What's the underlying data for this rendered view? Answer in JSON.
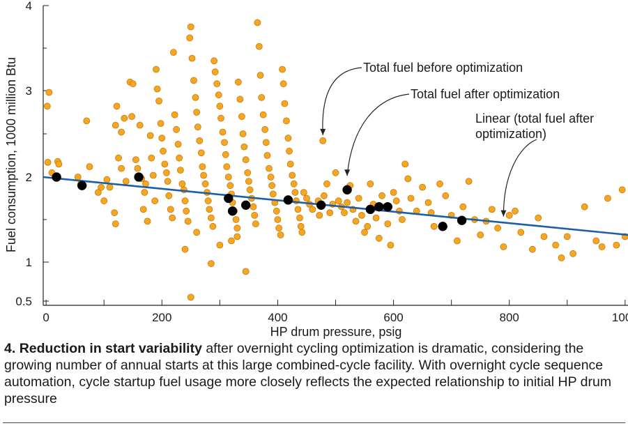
{
  "chart_data": {
    "type": "scatter",
    "title": "",
    "xlabel": "HP drum pressure, psig",
    "ylabel": "Fuel consumption, 1000 million Btu",
    "xlim": [
      -5,
      1005
    ],
    "ylim": [
      0.5,
      4
    ],
    "x_ticks": [
      0,
      200,
      400,
      600,
      800,
      1000
    ],
    "x_tick_labels": [
      "0",
      "200",
      "400",
      "600",
      "800",
      "1000"
    ],
    "x_minor_ticks": [
      100,
      300,
      500,
      700,
      900
    ],
    "y_ticks": [
      0.5,
      1,
      2,
      3,
      4
    ],
    "y_tick_labels": [
      "0.5",
      "1",
      "2",
      "3",
      "4"
    ],
    "y_minor_ticks": [
      1.5,
      2.5,
      3.5
    ],
    "colors": {
      "before": "#f5a623",
      "before_edge": "#c77a0a",
      "after": "#000000",
      "line": "#1a5fa8"
    },
    "series": [
      {
        "name": "Total fuel before optimization",
        "marker": "orange-circle",
        "points": [
          [
            2,
            2.82
          ],
          [
            5,
            2.98
          ],
          [
            3,
            2.17
          ],
          [
            10,
            2.05
          ],
          [
            20,
            2.18
          ],
          [
            22,
            2.15
          ],
          [
            70,
            2.65
          ],
          [
            55,
            2.0
          ],
          [
            60,
            1.92
          ],
          [
            75,
            2.12
          ],
          [
            90,
            1.82
          ],
          [
            95,
            1.88
          ],
          [
            105,
            1.97
          ],
          [
            110,
            1.88
          ],
          [
            100,
            1.72
          ],
          [
            120,
            2.6
          ],
          [
            122,
            2.82
          ],
          [
            125,
            2.22
          ],
          [
            118,
            1.58
          ],
          [
            120,
            1.45
          ],
          [
            130,
            2.52
          ],
          [
            130,
            2.1
          ],
          [
            135,
            2.68
          ],
          [
            138,
            1.95
          ],
          [
            145,
            3.1
          ],
          [
            148,
            2.7
          ],
          [
            150,
            3.08
          ],
          [
            155,
            2.2
          ],
          [
            158,
            2.1
          ],
          [
            160,
            2.0
          ],
          [
            162,
            2.6
          ],
          [
            165,
            1.98
          ],
          [
            170,
            1.82
          ],
          [
            168,
            1.62
          ],
          [
            172,
            1.92
          ],
          [
            175,
            1.48
          ],
          [
            180,
            2.48
          ],
          [
            182,
            2.22
          ],
          [
            185,
            2.02
          ],
          [
            188,
            1.72
          ],
          [
            190,
            3.25
          ],
          [
            192,
            3.02
          ],
          [
            195,
            2.88
          ],
          [
            198,
            2.62
          ],
          [
            200,
            2.45
          ],
          [
            202,
            2.3
          ],
          [
            205,
            2.15
          ],
          [
            208,
            2.05
          ],
          [
            210,
            1.95
          ],
          [
            212,
            1.78
          ],
          [
            215,
            1.62
          ],
          [
            218,
            1.52
          ],
          [
            220,
            3.45
          ],
          [
            222,
            2.72
          ],
          [
            225,
            2.55
          ],
          [
            228,
            2.38
          ],
          [
            230,
            2.22
          ],
          [
            232,
            2.08
          ],
          [
            235,
            1.92
          ],
          [
            238,
            1.85
          ],
          [
            240,
            1.72
          ],
          [
            242,
            1.6
          ],
          [
            245,
            1.48
          ],
          [
            248,
            3.62
          ],
          [
            250,
            3.75
          ],
          [
            252,
            3.38
          ],
          [
            255,
            3.12
          ],
          [
            258,
            2.92
          ],
          [
            260,
            2.75
          ],
          [
            262,
            2.58
          ],
          [
            265,
            2.42
          ],
          [
            268,
            2.28
          ],
          [
            270,
            2.12
          ],
          [
            272,
            2.02
          ],
          [
            275,
            1.92
          ],
          [
            278,
            1.82
          ],
          [
            280,
            1.72
          ],
          [
            282,
            1.62
          ],
          [
            285,
            1.52
          ],
          [
            288,
            1.42
          ],
          [
            290,
            3.35
          ],
          [
            292,
            3.22
          ],
          [
            295,
            3.08
          ],
          [
            298,
            2.95
          ],
          [
            300,
            2.82
          ],
          [
            302,
            2.68
          ],
          [
            305,
            2.52
          ],
          [
            308,
            2.4
          ],
          [
            310,
            2.26
          ],
          [
            312,
            2.12
          ],
          [
            315,
            2.0
          ],
          [
            318,
            1.9
          ],
          [
            320,
            1.8
          ],
          [
            322,
            1.7
          ],
          [
            325,
            1.6
          ],
          [
            328,
            1.5
          ],
          [
            330,
            1.4
          ],
          [
            332,
            3.1
          ],
          [
            335,
            2.9
          ],
          [
            338,
            2.7
          ],
          [
            340,
            2.5
          ],
          [
            342,
            2.35
          ],
          [
            345,
            2.2
          ],
          [
            348,
            2.05
          ],
          [
            350,
            1.95
          ],
          [
            352,
            1.85
          ],
          [
            355,
            1.75
          ],
          [
            358,
            1.65
          ],
          [
            360,
            1.55
          ],
          [
            362,
            1.45
          ],
          [
            365,
            3.8
          ],
          [
            368,
            3.52
          ],
          [
            370,
            3.18
          ],
          [
            372,
            2.92
          ],
          [
            375,
            2.72
          ],
          [
            378,
            2.55
          ],
          [
            380,
            2.4
          ],
          [
            382,
            2.25
          ],
          [
            385,
            2.1
          ],
          [
            388,
            2.0
          ],
          [
            390,
            1.9
          ],
          [
            392,
            1.8
          ],
          [
            395,
            1.7
          ],
          [
            398,
            1.6
          ],
          [
            400,
            1.5
          ],
          [
            402,
            1.4
          ],
          [
            405,
            1.32
          ],
          [
            408,
            3.25
          ],
          [
            410,
            3.08
          ],
          [
            412,
            2.85
          ],
          [
            415,
            2.65
          ],
          [
            418,
            2.45
          ],
          [
            420,
            2.3
          ],
          [
            422,
            2.15
          ],
          [
            425,
            2.02
          ],
          [
            428,
            1.92
          ],
          [
            430,
            1.82
          ],
          [
            432,
            1.72
          ],
          [
            435,
            1.62
          ],
          [
            438,
            1.52
          ],
          [
            440,
            1.42
          ],
          [
            442,
            1.35
          ],
          [
            445,
            1.82
          ],
          [
            450,
            1.75
          ],
          [
            455,
            1.68
          ],
          [
            460,
            1.62
          ],
          [
            470,
            1.72
          ],
          [
            472,
            1.55
          ],
          [
            478,
            2.42
          ],
          [
            480,
            1.78
          ],
          [
            485,
            1.92
          ],
          [
            490,
            1.58
          ],
          [
            495,
            1.68
          ],
          [
            500,
            2.05
          ],
          [
            505,
            1.72
          ],
          [
            510,
            1.65
          ],
          [
            515,
            1.58
          ],
          [
            520,
            1.7
          ],
          [
            525,
            1.9
          ],
          [
            530,
            1.62
          ],
          [
            535,
            1.48
          ],
          [
            540,
            1.75
          ],
          [
            545,
            1.55
          ],
          [
            550,
            1.35
          ],
          [
            555,
            1.42
          ],
          [
            560,
            1.92
          ],
          [
            565,
            1.68
          ],
          [
            570,
            1.52
          ],
          [
            575,
            1.28
          ],
          [
            580,
            1.78
          ],
          [
            585,
            1.65
          ],
          [
            590,
            1.45
          ],
          [
            595,
            1.2
          ],
          [
            600,
            1.82
          ],
          [
            605,
            1.72
          ],
          [
            610,
            1.6
          ],
          [
            615,
            1.5
          ],
          [
            620,
            2.15
          ],
          [
            625,
            1.98
          ],
          [
            630,
            1.75
          ],
          [
            640,
            1.6
          ],
          [
            650,
            1.88
          ],
          [
            660,
            1.7
          ],
          [
            665,
            1.58
          ],
          [
            670,
            1.42
          ],
          [
            680,
            1.92
          ],
          [
            690,
            1.78
          ],
          [
            700,
            1.55
          ],
          [
            710,
            1.25
          ],
          [
            720,
            1.65
          ],
          [
            730,
            1.95
          ],
          [
            740,
            1.5
          ],
          [
            750,
            1.32
          ],
          [
            760,
            1.48
          ],
          [
            770,
            1.62
          ],
          [
            780,
            1.4
          ],
          [
            790,
            1.18
          ],
          [
            800,
            1.55
          ],
          [
            810,
            1.6
          ],
          [
            820,
            1.35
          ],
          [
            840,
            1.15
          ],
          [
            850,
            1.52
          ],
          [
            860,
            1.3
          ],
          [
            880,
            1.2
          ],
          [
            890,
            1.05
          ],
          [
            900,
            1.3
          ],
          [
            910,
            1.1
          ],
          [
            930,
            1.65
          ],
          [
            950,
            1.25
          ],
          [
            960,
            1.18
          ],
          [
            970,
            1.75
          ],
          [
            985,
            1.2
          ],
          [
            995,
            1.85
          ],
          [
            1000,
            1.3
          ],
          [
            240,
            1.15
          ],
          [
            250,
            0.55
          ],
          [
            285,
            0.98
          ],
          [
            320,
            1.25
          ],
          [
            345,
            0.88
          ],
          [
            260,
            1.35
          ],
          [
            300,
            1.2
          ],
          [
            330,
            1.3
          ]
        ]
      },
      {
        "name": "Total fuel after optimization",
        "marker": "black-circle",
        "points": [
          [
            18,
            2.0
          ],
          [
            62,
            1.9
          ],
          [
            160,
            2.0
          ],
          [
            315,
            1.75
          ],
          [
            322,
            1.6
          ],
          [
            345,
            1.67
          ],
          [
            418,
            1.73
          ],
          [
            475,
            1.67
          ],
          [
            520,
            1.85
          ],
          [
            560,
            1.62
          ],
          [
            575,
            1.65
          ],
          [
            590,
            1.65
          ],
          [
            685,
            1.42
          ],
          [
            718,
            1.49
          ]
        ]
      },
      {
        "name": "Linear (total fuel after optimization)",
        "type": "line",
        "points": [
          [
            -5,
            2.0
          ],
          [
            1005,
            1.32
          ]
        ]
      }
    ],
    "annotations": [
      {
        "text": "Total fuel before optimization",
        "arrow_to_x": 478,
        "arrow_to_y": 2.42
      },
      {
        "text": "Total fuel after optimization",
        "arrow_to_x": 520,
        "arrow_to_y": 1.9
      },
      {
        "text": "Linear (total fuel after",
        "text_line2": "optimization)",
        "arrow_to_x": 790,
        "arrow_to_y": 1.47
      }
    ]
  },
  "caption": {
    "number": "4.",
    "bold": "Reduction in start variability",
    "text": " after overnight cycling optimization is dramatic, considering the growing number of annual starts at this large combined-cycle facility. With overnight cycle sequence automation, cycle startup fuel usage more closely reflects the expected relationship to initial HP drum pressure"
  }
}
